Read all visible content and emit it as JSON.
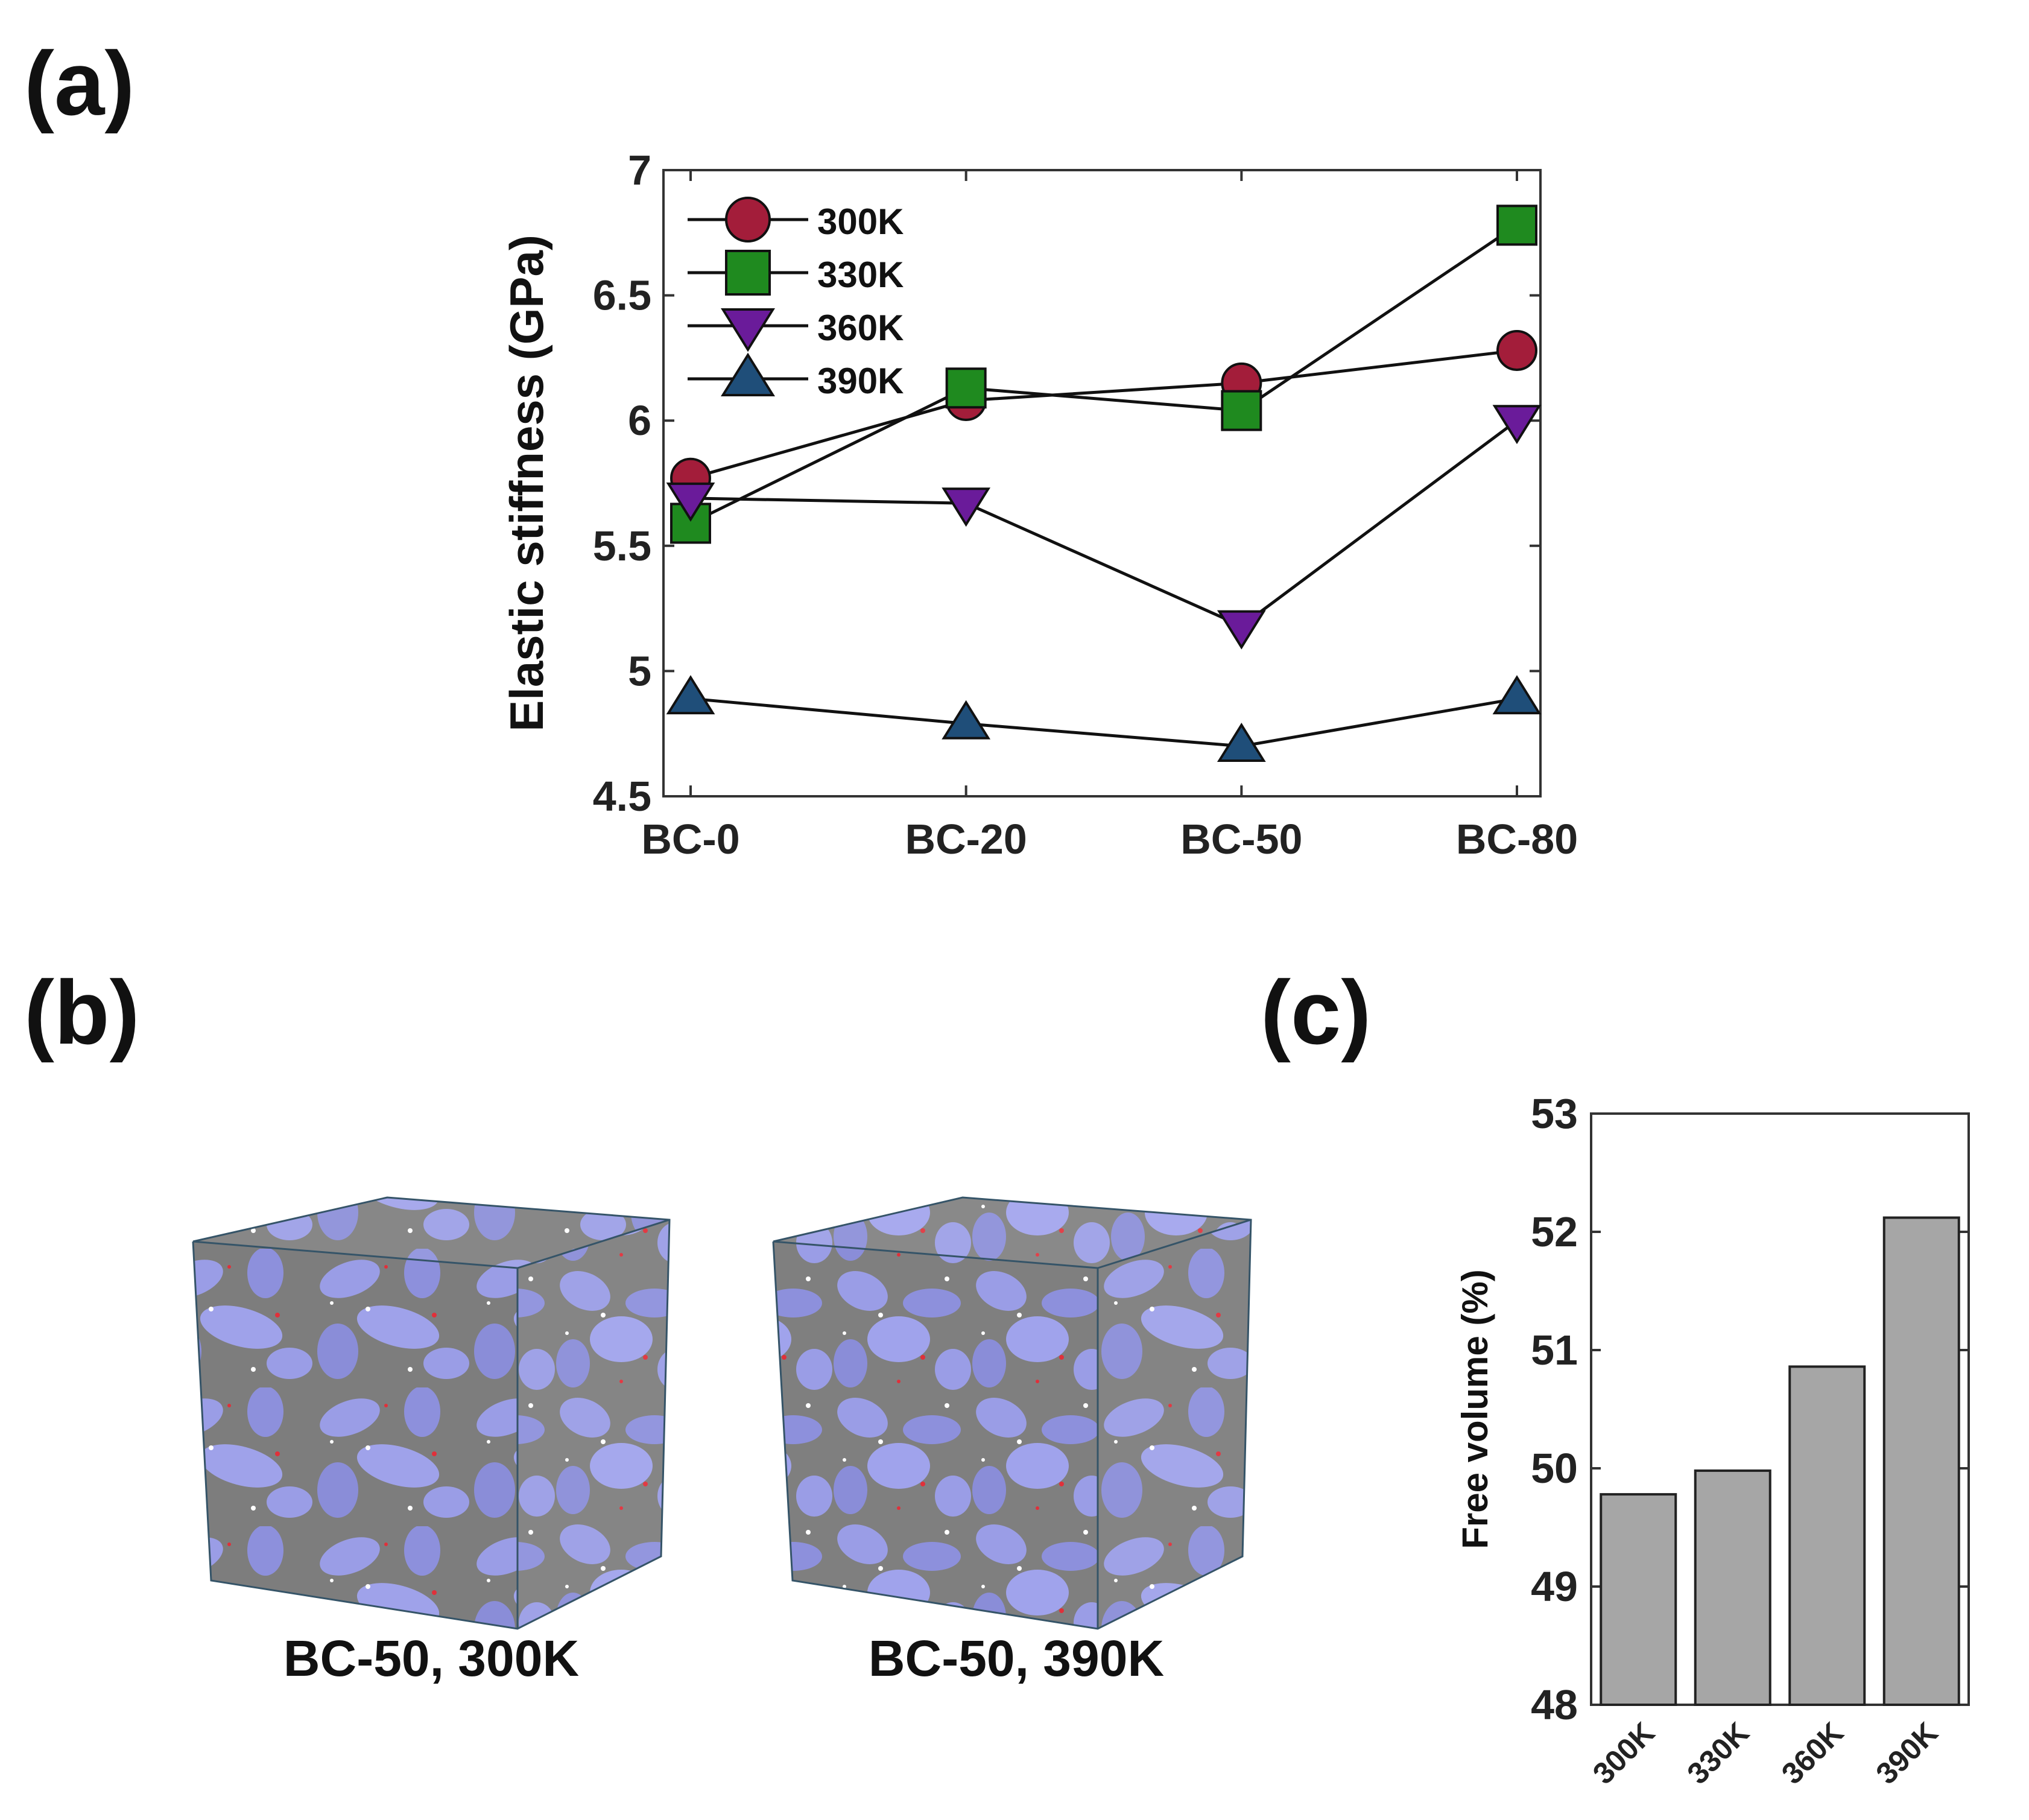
{
  "panels": {
    "a": "(a)",
    "b": "(b)",
    "c": "(c)"
  },
  "chart_data": [
    {
      "id": "a",
      "type": "line",
      "title": "",
      "xlabel": "",
      "ylabel": "Elastic stiffness (GPa)",
      "categories": [
        "BC-0",
        "BC-20",
        "BC-50",
        "BC-80"
      ],
      "ylim": [
        4.5,
        7
      ],
      "yticks": [
        4.5,
        5,
        5.5,
        6,
        6.5,
        7
      ],
      "ytick_labels": [
        "4.5",
        "5",
        "5.5",
        "6",
        "6.5",
        "7"
      ],
      "legend_position": "top-left",
      "series": [
        {
          "name": "300K",
          "marker": "circle",
          "color": "#a31d3a",
          "values": [
            5.77,
            6.08,
            6.15,
            6.28
          ]
        },
        {
          "name": "330K",
          "marker": "square",
          "color": "#1f8a1f",
          "values": [
            5.59,
            6.13,
            6.04,
            6.78
          ]
        },
        {
          "name": "360K",
          "marker": "triangle-down",
          "color": "#6a1b9a",
          "values": [
            5.69,
            5.67,
            5.18,
            6.0
          ]
        },
        {
          "name": "390K",
          "marker": "triangle-up",
          "color": "#1f4e79",
          "values": [
            4.89,
            4.79,
            4.7,
            4.89
          ]
        }
      ]
    },
    {
      "id": "c",
      "type": "bar",
      "title": "",
      "xlabel": "",
      "ylabel": "Free volume (%)",
      "categories": [
        "300K",
        "330K",
        "360K",
        "390K"
      ],
      "values": [
        49.78,
        49.98,
        50.86,
        52.12
      ],
      "ylim": [
        48,
        53
      ],
      "yticks": [
        48,
        49,
        50,
        51,
        52,
        53
      ],
      "ytick_labels": [
        "48",
        "49",
        "50",
        "51",
        "52",
        "53"
      ],
      "bar_color": "#a6a6a6"
    }
  ],
  "panel_b": {
    "captions": [
      "BC-50, 300K",
      "BC-50, 390K"
    ]
  }
}
